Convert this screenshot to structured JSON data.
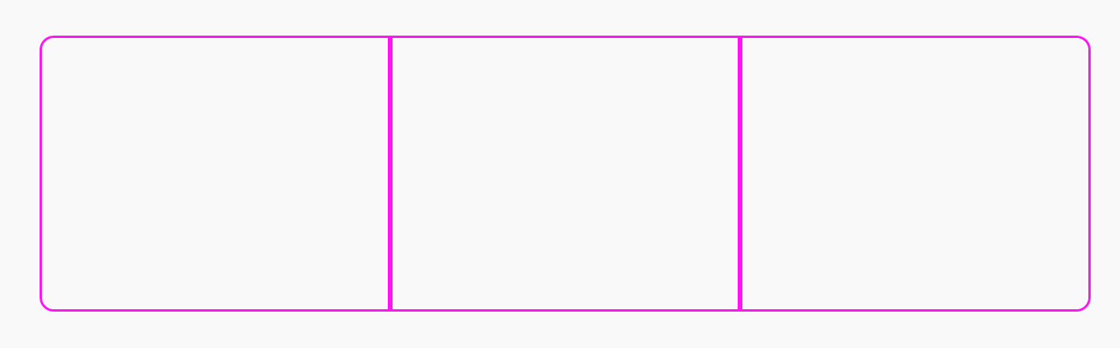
{
  "segmented_control": {
    "accent_color": "#ff14f4",
    "background_color": "#f9f9f9",
    "segments": [
      {
        "label": ""
      },
      {
        "label": ""
      },
      {
        "label": ""
      }
    ]
  }
}
